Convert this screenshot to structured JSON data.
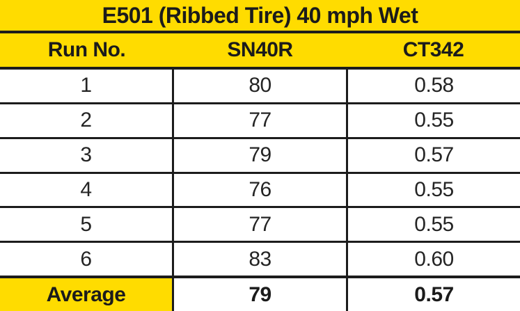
{
  "chart_data": {
    "type": "table",
    "title": "E501 (Ribbed Tire) 40 mph Wet",
    "columns": [
      "Run No.",
      "SN40R",
      "CT342"
    ],
    "rows": [
      [
        "1",
        "80",
        "0.58"
      ],
      [
        "2",
        "77",
        "0.55"
      ],
      [
        "3",
        "79",
        "0.57"
      ],
      [
        "4",
        "76",
        "0.55"
      ],
      [
        "5",
        "77",
        "0.55"
      ],
      [
        "6",
        "83",
        "0.60"
      ]
    ],
    "footer": [
      "Average",
      "79",
      "0.57"
    ],
    "layout": {
      "grid": "on",
      "header_position": "top",
      "highlighted_cells": [
        "title",
        "column-headers",
        "footer-label"
      ]
    }
  },
  "colors": {
    "highlight_yellow": "#FFDC00",
    "grid_border": "#1C1C1C",
    "text": "#1B1B1B",
    "row_background": "#FFFFFF"
  }
}
